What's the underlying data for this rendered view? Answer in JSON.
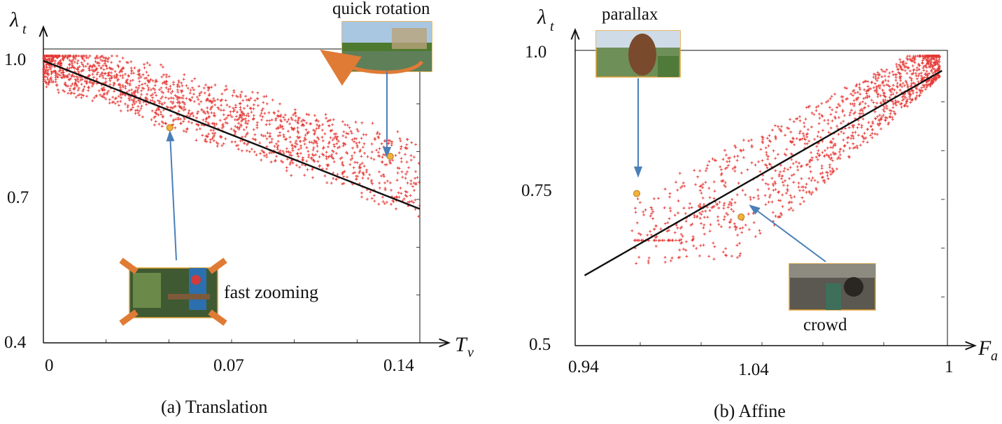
{
  "chart_data": [
    {
      "type": "scatter",
      "caption": "(a) Translation",
      "xlabel": "T",
      "xlabel_sub": "v",
      "ylabel": "λ",
      "ylabel_sub": "t",
      "xlim": [
        0,
        0.14
      ],
      "ylim": [
        0.4,
        1.0
      ],
      "xticks": [
        "0",
        "0.07",
        "0.14"
      ],
      "yticks": [
        "1.0",
        "0.7",
        "0.4"
      ],
      "point_color": "#e53935",
      "fit_line": {
        "x": [
          0,
          0.14
        ],
        "y": [
          0.99,
          0.68
        ]
      },
      "highlights": [
        {
          "label": "quick rotation",
          "x": 0.129,
          "y": 0.79
        },
        {
          "label": "fast zooming",
          "x": 0.047,
          "y": 0.85
        }
      ]
    },
    {
      "type": "scatter",
      "caption": "(b) Affine",
      "xlabel": "F",
      "xlabel_sub": "a",
      "ylabel": "λ",
      "ylabel_sub": "t",
      "xlim": [
        0.94,
        1.08
      ],
      "ylim": [
        0.5,
        1.0
      ],
      "xticks": [
        "0.94",
        "1.04",
        "1"
      ],
      "yticks": [
        "1.0",
        "0.75",
        "0.5"
      ],
      "point_color": "#e53935",
      "fit_line": {
        "x": [
          0.942,
          1.079
        ],
        "y": [
          0.62,
          0.97
        ]
      },
      "highlights": [
        {
          "label": "parallax",
          "x": 0.962,
          "y": 0.76
        },
        {
          "label": "crowd",
          "x": 1.002,
          "y": 0.72
        }
      ]
    }
  ],
  "colors": {
    "points": "#e53935",
    "marker": "#f2b13c",
    "arrow": "#4a7fb8",
    "rotation_arrow": "#e07b35",
    "zoom_arrows": "#e07b35"
  }
}
